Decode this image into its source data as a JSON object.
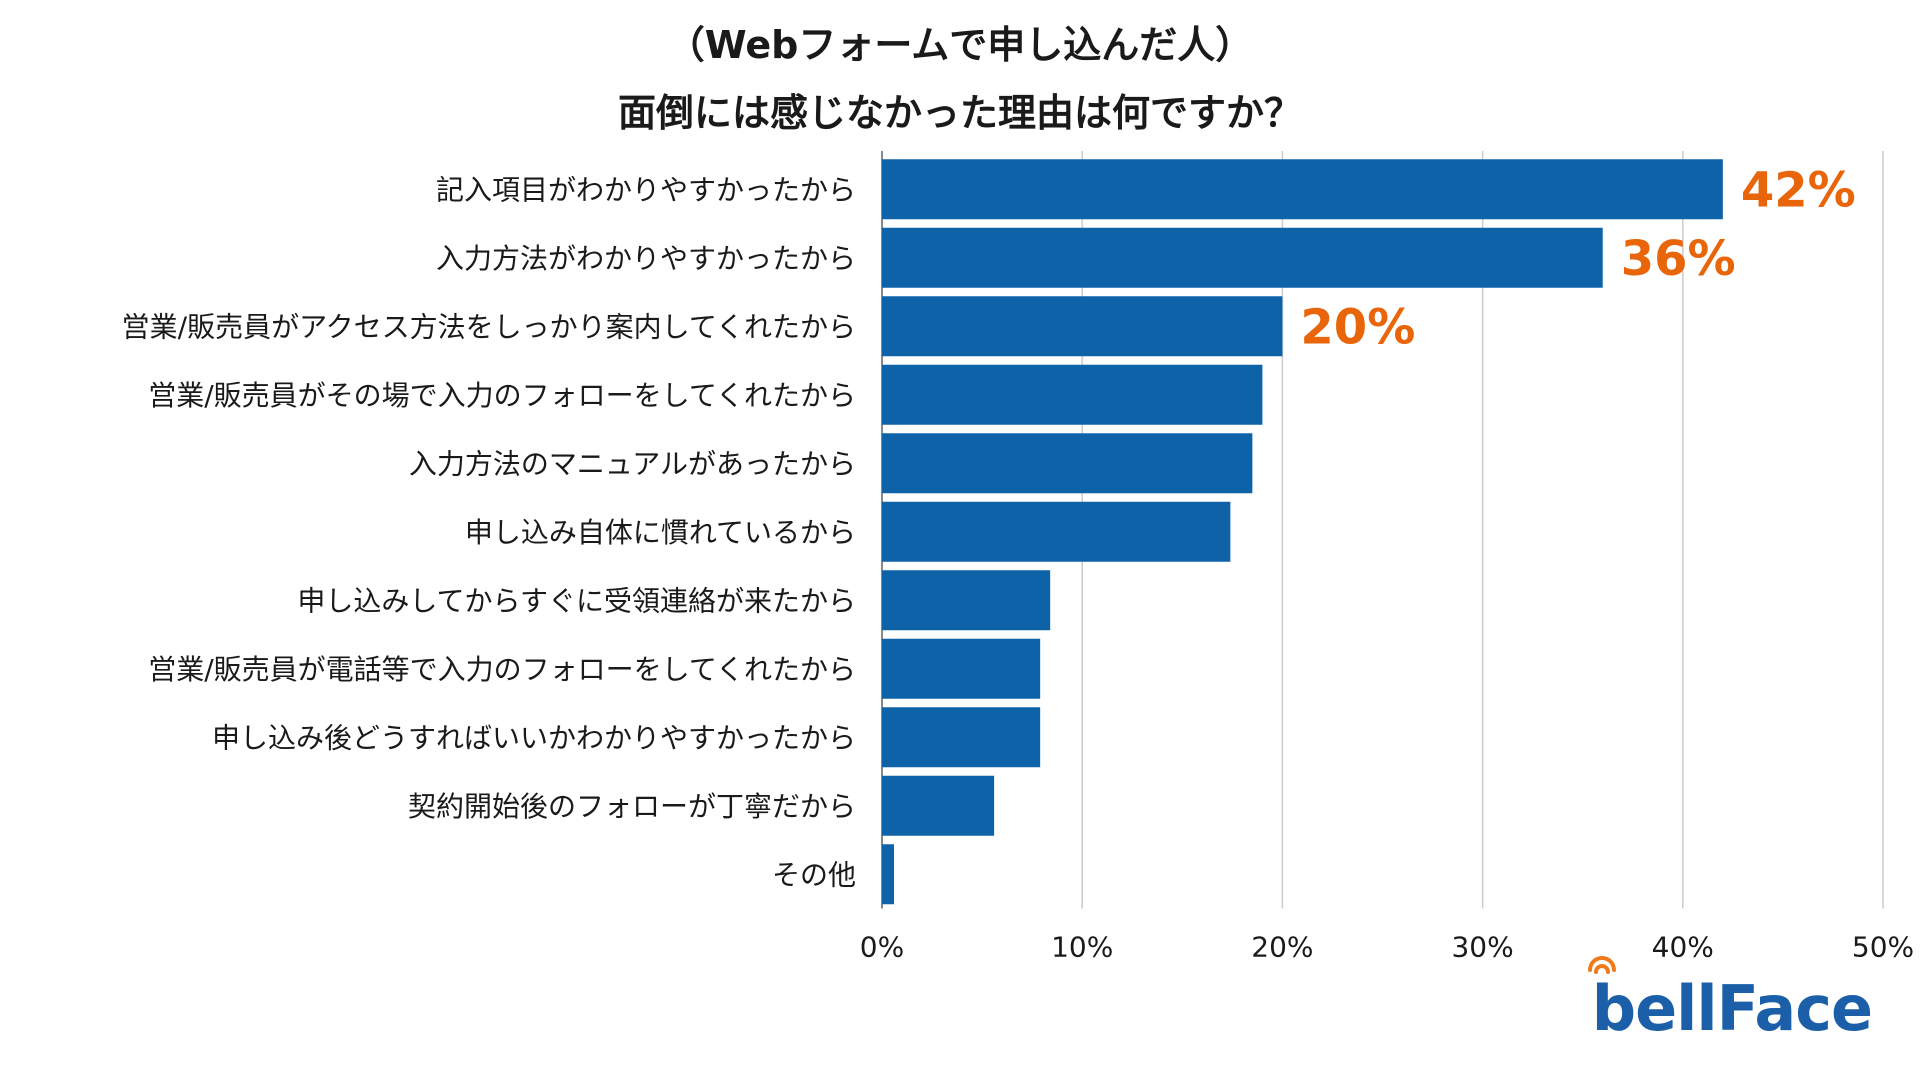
{
  "colors": {
    "bar": "#0e63a8",
    "highlight_label": "#e8650a",
    "grid": "#cccccc",
    "axis": "#888888",
    "brand": "#1a5fa8",
    "brand_accent": "#f07a1a"
  },
  "brand": {
    "logo_text": "bellFace",
    "logo_icon": "signal-waves-icon"
  },
  "chart_data": {
    "type": "bar",
    "orientation": "horizontal",
    "title": [
      "（Webフォームで申し込んだ人）",
      "面倒には感じなかった理由は何ですか？"
    ],
    "categories": [
      "記入項目がわかりやすかったから",
      "入力方法がわかりやすかったから",
      "営業/販売員がアクセス方法をしっかり案内してくれたから",
      "営業/販売員がその場で入力のフォローをしてくれたから",
      "入力方法のマニュアルがあったから",
      "申し込み自体に慣れているから",
      "申し込みしてからすぐに受領連絡が来たから",
      "営業/販売員が電話等で入力のフォローをしてくれたから",
      "申し込み後どうすればいいかわかりやすかったから",
      "契約開始後のフォローが丁寧だから",
      "その他"
    ],
    "values": [
      42,
      36,
      20,
      19,
      18.5,
      17.4,
      8.4,
      7.9,
      7.9,
      5.6,
      0.6
    ],
    "data_labels": [
      "42%",
      "36%",
      "20%",
      "",
      "",
      "",
      "",
      "",
      "",
      "",
      ""
    ],
    "xlim": [
      0,
      50
    ],
    "xticks": [
      0,
      10,
      20,
      30,
      40,
      50
    ],
    "xtick_labels": [
      "0%",
      "10%",
      "20%",
      "30%",
      "40%",
      "50%"
    ],
    "xlabel": "",
    "ylabel": "",
    "grid": "vertical",
    "legend": "none"
  }
}
